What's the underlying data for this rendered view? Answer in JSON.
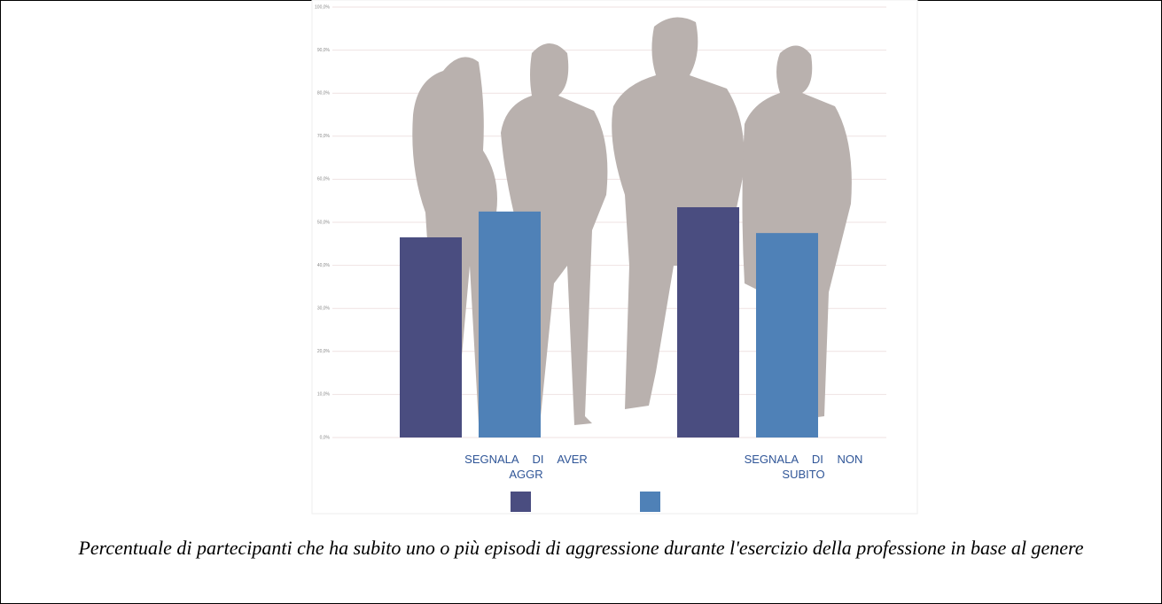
{
  "chart_data": {
    "type": "bar",
    "categories": [
      "SEGNALA DI AVER AGGR",
      "SEGNALA DI NON SUBITO"
    ],
    "series": [
      {
        "color": "#4a4d80",
        "values": [
          46.5,
          53.5
        ]
      },
      {
        "color": "#4f81b7",
        "values": [
          52.5,
          47.5
        ]
      }
    ],
    "ylim": [
      0,
      100
    ],
    "yticks": [
      {
        "value": 0,
        "label": "0,0%"
      },
      {
        "value": 10,
        "label": "10,0%"
      },
      {
        "value": 20,
        "label": "20,0%"
      },
      {
        "value": 30,
        "label": "30,0%"
      },
      {
        "value": 40,
        "label": "40,0%"
      },
      {
        "value": 50,
        "label": "50,0%"
      },
      {
        "value": 60,
        "label": "60,0%"
      },
      {
        "value": 70,
        "label": "70,0%"
      },
      {
        "value": 80,
        "label": "80,0%"
      },
      {
        "value": 90,
        "label": "90,0%"
      },
      {
        "value": 100,
        "label": "100,0%"
      }
    ],
    "grid": true
  },
  "caption": "Percentuale di partecipanti che ha subito uno o più episodi di aggressione durante l'esercizio della professione in base al genere"
}
